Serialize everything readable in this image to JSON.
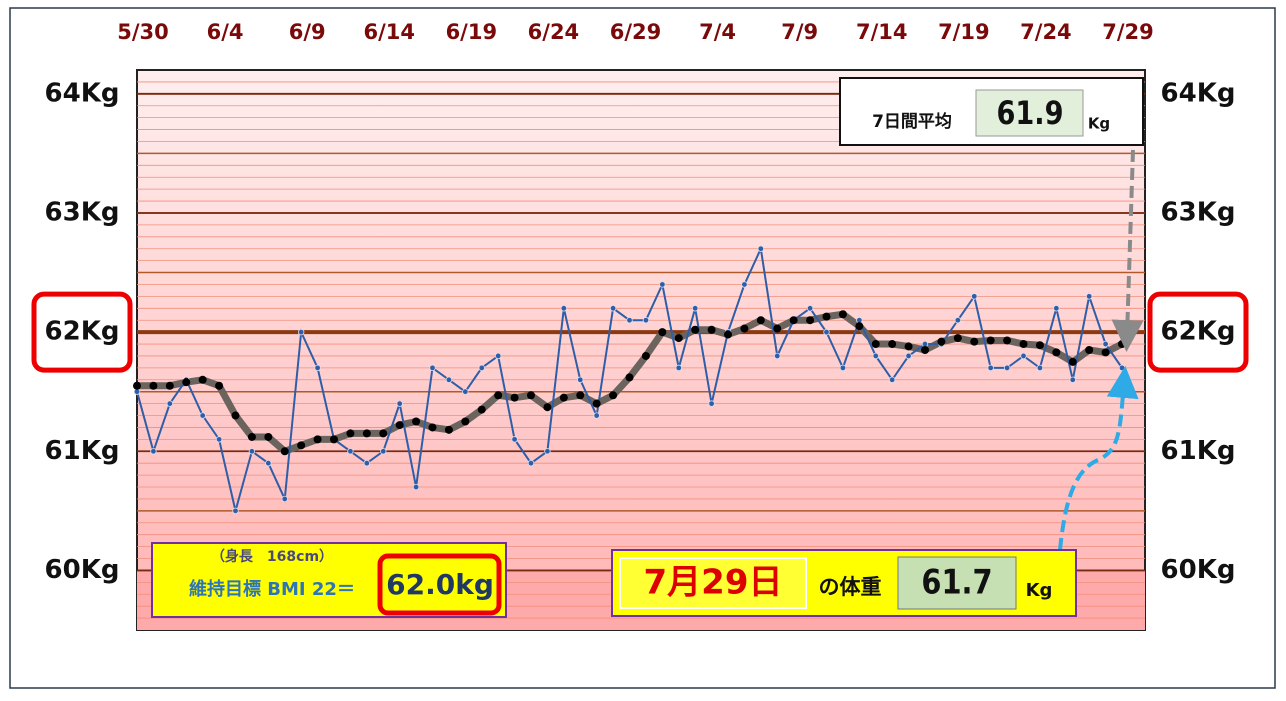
{
  "chart_data": {
    "type": "line",
    "categories": [
      "5/30",
      null,
      null,
      null,
      null,
      "6/4",
      null,
      null,
      null,
      null,
      "6/9",
      null,
      null,
      null,
      null,
      "6/14",
      null,
      null,
      null,
      null,
      "6/19",
      null,
      null,
      null,
      null,
      "6/24",
      null,
      null,
      null,
      null,
      "6/29",
      null,
      null,
      null,
      null,
      "7/4",
      null,
      null,
      null,
      null,
      "7/9",
      null,
      null,
      null,
      null,
      "7/14",
      null,
      null,
      null,
      null,
      "7/19",
      null,
      null,
      null,
      null,
      "7/24",
      null,
      null,
      null,
      null,
      "7/29"
    ],
    "series": [
      {
        "color": "#2f5ea8",
        "values": [
          61.5,
          61.0,
          61.4,
          61.6,
          61.3,
          61.1,
          60.5,
          61.0,
          60.9,
          60.6,
          62.0,
          61.7,
          61.1,
          61.0,
          60.9,
          61.0,
          61.4,
          60.7,
          61.7,
          61.6,
          61.5,
          61.7,
          61.8,
          61.1,
          60.9,
          61.0,
          62.2,
          61.6,
          61.3,
          62.2,
          62.1,
          62.1,
          62.4,
          61.7,
          62.2,
          61.4,
          62.0,
          62.4,
          62.7,
          61.8,
          62.1,
          62.2,
          62.0,
          61.7,
          62.1,
          61.8,
          61.6,
          61.8,
          61.9,
          61.9,
          62.1,
          62.3,
          61.7,
          61.7,
          61.8,
          61.7,
          62.2,
          61.6,
          62.3,
          61.9,
          61.7
        ]
      },
      {
        "color": "#6b635d",
        "values": [
          61.55,
          61.55,
          61.55,
          61.58,
          61.6,
          61.55,
          61.3,
          61.12,
          61.12,
          61.0,
          61.05,
          61.1,
          61.1,
          61.15,
          61.15,
          61.15,
          61.22,
          61.25,
          61.2,
          61.18,
          61.25,
          61.35,
          61.47,
          61.45,
          61.47,
          61.37,
          61.45,
          61.47,
          61.4,
          61.47,
          61.62,
          61.8,
          62.0,
          61.95,
          62.02,
          62.02,
          61.98,
          62.03,
          62.1,
          62.03,
          62.1,
          62.1,
          62.13,
          62.15,
          62.05,
          61.9,
          61.9,
          61.88,
          61.85,
          61.92,
          61.95,
          61.92,
          61.93,
          61.93,
          61.9,
          61.89,
          61.83,
          61.75,
          61.85,
          61.83,
          61.9
        ]
      }
    ],
    "ylim": [
      59.5,
      64.2
    ],
    "yticks": [
      {
        "value": 60,
        "label": "60Kg"
      },
      {
        "value": 61,
        "label": "61Kg"
      },
      {
        "value": 62,
        "label": "62Kg"
      },
      {
        "value": 63,
        "label": "63Kg"
      },
      {
        "value": 64,
        "label": "64Kg"
      }
    ],
    "grid": true,
    "major_grid": 0.5,
    "minor_grid": 0.1,
    "average_box": {
      "label": "7日間平均",
      "value": 61.9,
      "unit": "Kg"
    },
    "target": {
      "note": "（身長　168cm）",
      "label": "維持目標 BMI 22＝",
      "value": 62,
      "value_label": "62.0kg"
    },
    "today_box": {
      "date": "7月29日",
      "label": "の体重",
      "value": 61.7,
      "unit": "Kg"
    }
  }
}
